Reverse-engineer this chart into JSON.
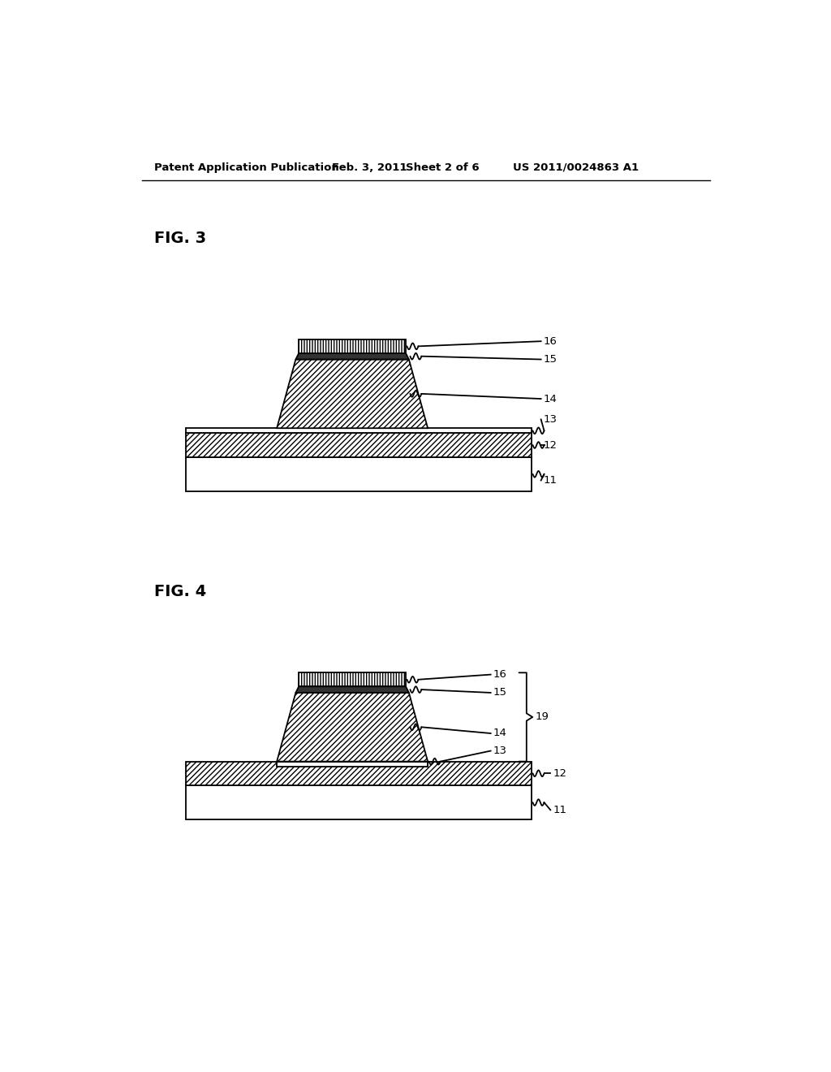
{
  "bg_color": "#ffffff",
  "header_text": "Patent Application Publication",
  "header_date": "Feb. 3, 2011",
  "header_sheet": "Sheet 2 of 6",
  "header_patent": "US 2011/0024863 A1",
  "fig3_label": "FIG. 3",
  "fig4_label": "FIG. 4",
  "line_color": "#000000",
  "lw": 1.3
}
